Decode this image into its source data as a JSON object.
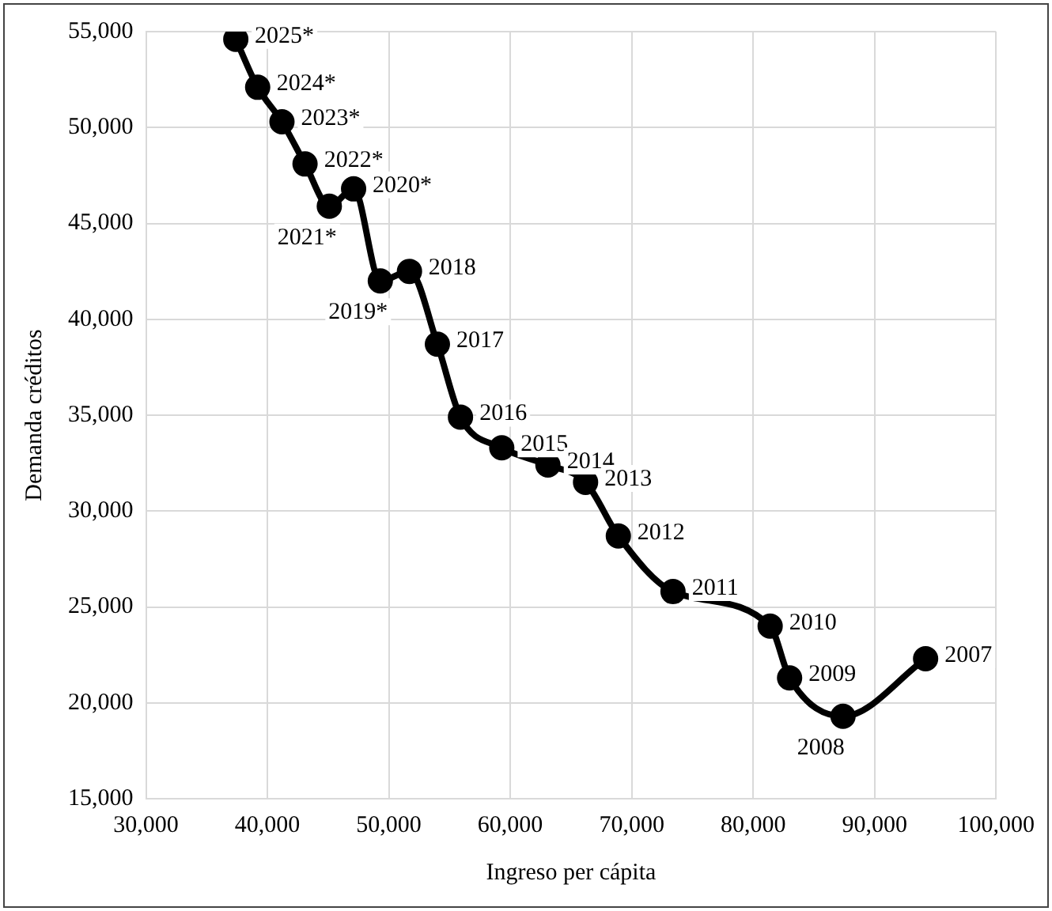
{
  "chart_data": {
    "type": "line",
    "xlabel": "Ingreso per cápita",
    "ylabel": "Demanda créditos",
    "x": [
      37400,
      39200,
      41200,
      43100,
      45100,
      47100,
      49300,
      51700,
      54000,
      55900,
      59300,
      63100,
      66200,
      68900,
      73400,
      81400,
      83000,
      87400,
      94200
    ],
    "series": [
      {
        "color": "#000000",
        "values": [
          54600,
          52100,
          50300,
          48100,
          45900,
          46800,
          42000,
          42500,
          38700,
          34900,
          33300,
          32400,
          31500,
          28700,
          25800,
          24000,
          21300,
          19300,
          22300
        ]
      }
    ],
    "annotations": [
      {
        "text": "2025*",
        "x": 37400,
        "y": 54600
      },
      {
        "text": "2024*",
        "x": 39200,
        "y": 52100
      },
      {
        "text": "2023*",
        "x": 41200,
        "y": 50300
      },
      {
        "text": "2022*",
        "x": 43100,
        "y": 48100
      },
      {
        "text": "2021*",
        "x": 45100,
        "y": 45900
      },
      {
        "text": "2020*",
        "x": 47100,
        "y": 46800
      },
      {
        "text": "2019*",
        "x": 49300,
        "y": 42000
      },
      {
        "text": "2018",
        "x": 51700,
        "y": 42500
      },
      {
        "text": "2017",
        "x": 54000,
        "y": 38700
      },
      {
        "text": "2016",
        "x": 55900,
        "y": 34900
      },
      {
        "text": "2015",
        "x": 59300,
        "y": 33300
      },
      {
        "text": "2014",
        "x": 63100,
        "y": 32400
      },
      {
        "text": "2013",
        "x": 66200,
        "y": 31500
      },
      {
        "text": "2012",
        "x": 68900,
        "y": 28700
      },
      {
        "text": "2011",
        "x": 73400,
        "y": 25800
      },
      {
        "text": "2010",
        "x": 81400,
        "y": 24000
      },
      {
        "text": "2009",
        "x": 83000,
        "y": 21300
      },
      {
        "text": "2008",
        "x": 87400,
        "y": 19300
      },
      {
        "text": "2007",
        "x": 94200,
        "y": 22300
      }
    ],
    "xlim": [
      30000,
      100000
    ],
    "xticks": [
      {
        "value": 30000,
        "label": "30,000"
      },
      {
        "value": 40000,
        "label": "40,000"
      },
      {
        "value": 50000,
        "label": "50,000"
      },
      {
        "value": 60000,
        "label": "60,000"
      },
      {
        "value": 70000,
        "label": "70,000"
      },
      {
        "value": 80000,
        "label": "80,000"
      },
      {
        "value": 90000,
        "label": "90,000"
      },
      {
        "value": 100000,
        "label": "100,000"
      }
    ],
    "ylim": [
      15000,
      55000
    ],
    "yticks": [
      {
        "value": 15000,
        "label": "15,000"
      },
      {
        "value": 20000,
        "label": "20,000"
      },
      {
        "value": 25000,
        "label": "25,000"
      },
      {
        "value": 30000,
        "label": "30,000"
      },
      {
        "value": 35000,
        "label": "35,000"
      },
      {
        "value": 40000,
        "label": "40,000"
      },
      {
        "value": 45000,
        "label": "45,000"
      },
      {
        "value": 50000,
        "label": "50,000"
      },
      {
        "value": 55000,
        "label": "55,000"
      }
    ],
    "grid": true,
    "marker": "circle",
    "line_style": "solid",
    "legend": false
  }
}
